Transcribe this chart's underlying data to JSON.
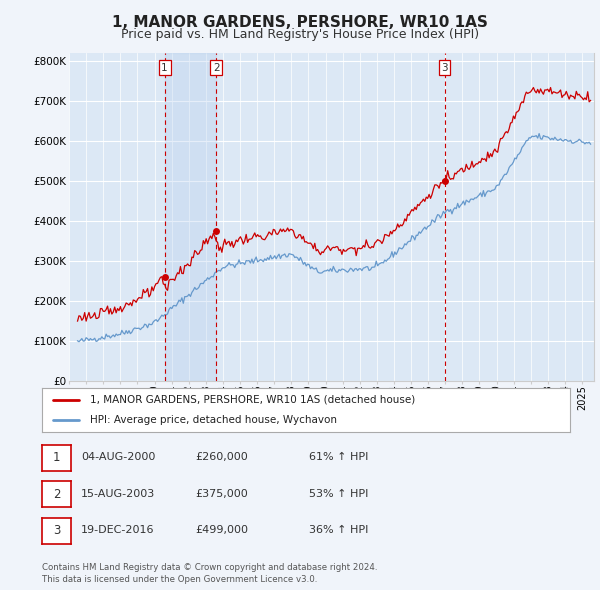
{
  "title": "1, MANOR GARDENS, PERSHORE, WR10 1AS",
  "subtitle": "Price paid vs. HM Land Registry's House Price Index (HPI)",
  "title_fontsize": 11,
  "subtitle_fontsize": 9,
  "bg_color": "#f0f4fa",
  "plot_bg_color": "#dce8f5",
  "shade_color": "#ccddf5",
  "grid_color": "#ffffff",
  "ylabel_ticks": [
    "£0",
    "£100K",
    "£200K",
    "£300K",
    "£400K",
    "£500K",
    "£600K",
    "£700K",
    "£800K"
  ],
  "ytick_values": [
    0,
    100000,
    200000,
    300000,
    400000,
    500000,
    600000,
    700000,
    800000
  ],
  "ylim": [
    0,
    820000
  ],
  "xlim_start": 1995.3,
  "xlim_end": 2025.7,
  "xticks": [
    1995,
    1996,
    1997,
    1998,
    1999,
    2000,
    2001,
    2002,
    2003,
    2004,
    2005,
    2006,
    2007,
    2008,
    2009,
    2010,
    2011,
    2012,
    2013,
    2014,
    2015,
    2016,
    2017,
    2018,
    2019,
    2020,
    2021,
    2022,
    2023,
    2024,
    2025
  ],
  "purchase_dates": [
    2000.59,
    2003.62,
    2016.96
  ],
  "purchase_prices": [
    260000,
    375000,
    499000
  ],
  "purchase_labels": [
    "1",
    "2",
    "3"
  ],
  "shade_x1": 2000.59,
  "shade_x2": 2003.62,
  "vline_color": "#cc0000",
  "dot_color": "#cc0000",
  "line_color_red": "#cc0000",
  "line_color_blue": "#6699cc",
  "legend_line1": "1, MANOR GARDENS, PERSHORE, WR10 1AS (detached house)",
  "legend_line2": "HPI: Average price, detached house, Wychavon",
  "table_data": [
    {
      "num": "1",
      "date": "04-AUG-2000",
      "price": "£260,000",
      "pct": "61% ↑ HPI"
    },
    {
      "num": "2",
      "date": "15-AUG-2003",
      "price": "£375,000",
      "pct": "53% ↑ HPI"
    },
    {
      "num": "3",
      "date": "19-DEC-2016",
      "price": "£499,000",
      "pct": "36% ↑ HPI"
    }
  ],
  "footer": "Contains HM Land Registry data © Crown copyright and database right 2024.\nThis data is licensed under the Open Government Licence v3.0."
}
